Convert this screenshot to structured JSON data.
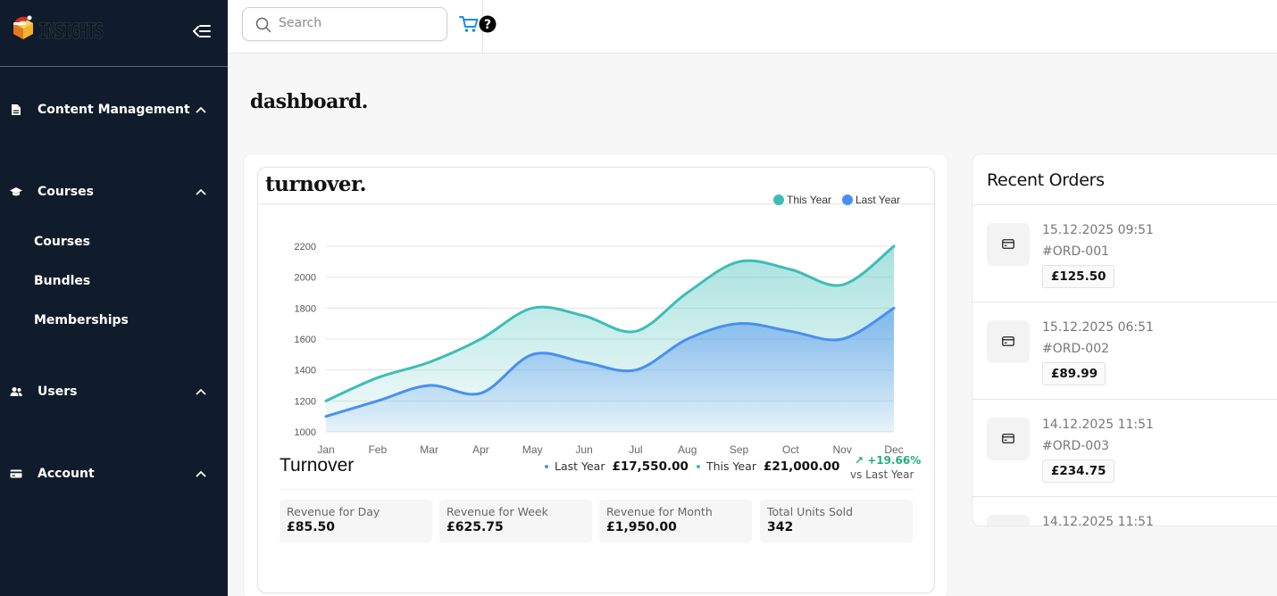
{
  "app": {
    "brand_name": "INSIGHTS"
  },
  "sidebar": {
    "groups": [
      {
        "label": "Content Management",
        "icon": "document-icon",
        "expanded": true
      },
      {
        "label": "Courses",
        "icon": "graduation-cap-icon",
        "expanded": true
      },
      {
        "label": "Users",
        "icon": "users-icon",
        "expanded": true
      },
      {
        "label": "Account",
        "icon": "credit-card-icon",
        "expanded": true
      }
    ],
    "course_items": [
      "Courses",
      "Bundles",
      "Memberships"
    ]
  },
  "topbar": {
    "search": {
      "placeholder": "Search",
      "value": ""
    },
    "icons": [
      "cart-icon",
      "help-icon"
    ]
  },
  "page": {
    "title": "dashboard."
  },
  "turnover_card": {
    "title": "turnover.",
    "legend": [
      {
        "label": "This Year",
        "color": "#3dbdb7"
      },
      {
        "label": "Last Year",
        "color": "#4a8ff0"
      }
    ],
    "summary": {
      "heading": "Turnover",
      "last_year_label": "Last Year",
      "last_year_amount": "£17,550.00",
      "this_year_label": "This Year",
      "this_year_amount": "£21,000.00",
      "change": "↗ +19.66%",
      "change_caption": "vs Last Year"
    },
    "tiles": [
      {
        "label": "Revenue for Day",
        "value": "£85.50"
      },
      {
        "label": "Revenue for Week",
        "value": "£625.75"
      },
      {
        "label": "Revenue for Month",
        "value": "£1,950.00"
      },
      {
        "label": "Total Units Sold",
        "value": "342"
      }
    ]
  },
  "chart_data": {
    "type": "area",
    "categories": [
      "Jan",
      "Feb",
      "Mar",
      "Apr",
      "May",
      "Jun",
      "Jul",
      "Aug",
      "Sep",
      "Oct",
      "Nov",
      "Dec"
    ],
    "series": [
      {
        "name": "This Year",
        "color": "#3dbdb7",
        "values": [
          1200,
          1350,
          1450,
          1600,
          1800,
          1750,
          1650,
          1900,
          2100,
          2050,
          1950,
          2200
        ]
      },
      {
        "name": "Last Year",
        "color": "#4a8ff0",
        "values": [
          1100,
          1200,
          1300,
          1250,
          1500,
          1450,
          1400,
          1600,
          1700,
          1650,
          1600,
          1800
        ]
      }
    ],
    "y_ticks": [
      1000,
      1200,
      1400,
      1600,
      1800,
      2000,
      2200
    ],
    "ylim": [
      1000,
      2200
    ],
    "grid": true,
    "legend_position": "top-right"
  },
  "recent_orders": {
    "title": "Recent Orders",
    "orders": [
      {
        "date": "15.12.2025 09:51",
        "id": "#ORD-001",
        "amount": "£125.50"
      },
      {
        "date": "15.12.2025 06:51",
        "id": "#ORD-002",
        "amount": "£89.99"
      },
      {
        "date": "14.12.2025 11:51",
        "id": "#ORD-003",
        "amount": "£234.75"
      },
      {
        "date": "14.12.2025 11:51",
        "id": "",
        "amount": ""
      }
    ]
  }
}
